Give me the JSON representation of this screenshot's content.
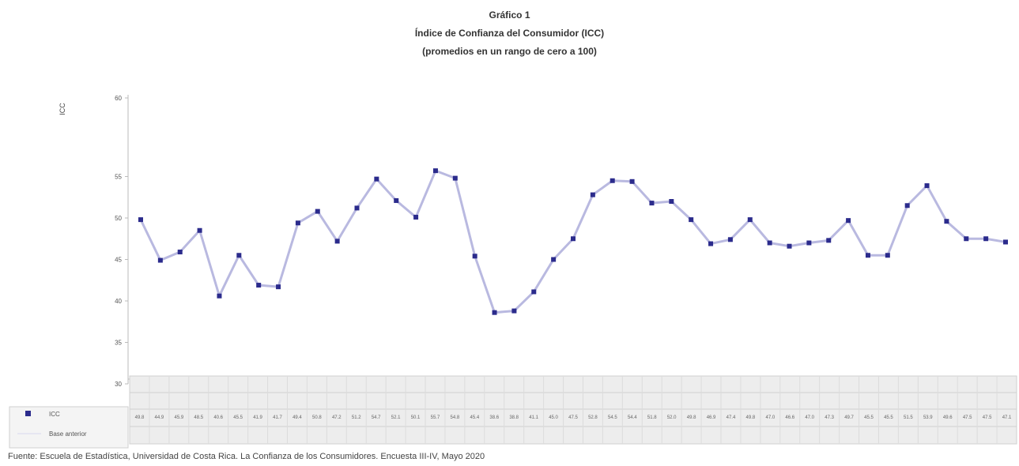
{
  "titles": {
    "line1": "Gráfico 1",
    "line2": "Índice de Confianza del Consumidor (ICC)",
    "line3": "(promedios en un rango de cero a 100)"
  },
  "ylabel": "ICC",
  "source": "Fuente: Escuela de Estadística, Universidad de Costa Rica. La Confianza de los Consumidores. Encuesta III-IV, Mayo 2020",
  "legend": {
    "series_label": "ICC",
    "second_label": "Base anterior",
    "series_color": "#2b2b8c",
    "line_color": "#b9b9e0"
  },
  "chart_data": {
    "type": "line",
    "title": "Índice de Confianza del Consumidor (ICC)",
    "ylabel": "ICC",
    "ylim": [
      30,
      60
    ],
    "yticks": [
      30,
      35,
      40,
      45,
      50,
      55,
      60
    ],
    "grid": false,
    "legend_position": "bottom-left",
    "series": [
      {
        "name": "ICC",
        "values": [
          49.8,
          44.9,
          45.9,
          48.5,
          40.6,
          45.5,
          41.9,
          41.7,
          49.4,
          50.8,
          47.2,
          51.2,
          54.7,
          52.1,
          50.1,
          55.7,
          54.8,
          45.4,
          38.6,
          38.8,
          41.1,
          45.0,
          47.5,
          52.8,
          54.5,
          54.4,
          51.8,
          52.0,
          49.8,
          46.9,
          47.4,
          49.8,
          47.0,
          46.6,
          47.0,
          47.3,
          49.7,
          45.5,
          45.5,
          51.5,
          53.9,
          49.6,
          47.5,
          47.5,
          47.1
        ]
      }
    ],
    "table_rows": [
      "ICC",
      "Base anterior"
    ]
  }
}
